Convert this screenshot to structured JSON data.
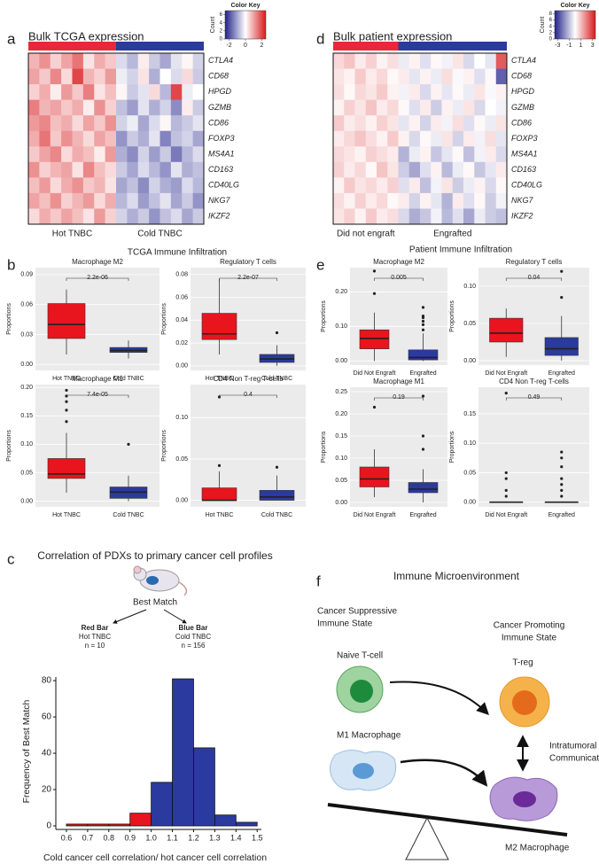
{
  "panel_labels": [
    "a",
    "b",
    "c",
    "d",
    "e",
    "f"
  ],
  "section_titles": [
    "TCGA Immune Infiltration",
    "Patient Immune Infiltration"
  ],
  "chart_data": [
    {
      "type": "heatmap",
      "title": "Bulk TCGA expression",
      "rows": [
        "CTLA4",
        "CD68",
        "HPGD",
        "GZMB",
        "CD86",
        "FOXP3",
        "MS4A1",
        "CD163",
        "CD40LG",
        "NKG7",
        "IKZF2"
      ],
      "groups": [
        {
          "label": "Hot TNBC",
          "color": "#e8283a",
          "columns": 8
        },
        {
          "label": "Cold TNBC",
          "color": "#2b3a9e",
          "columns": 8
        }
      ],
      "values": [
        [
          0.8,
          1.2,
          0.5,
          1.0,
          1.5,
          0.3,
          0.9,
          0.6,
          -0.4,
          -0.8,
          0.2,
          -0.6,
          -1.0,
          -0.3,
          0.1,
          -0.5
        ],
        [
          1.0,
          0.6,
          1.3,
          0.4,
          2.0,
          0.8,
          0.5,
          1.1,
          -0.2,
          -0.5,
          0.3,
          -0.9,
          0.0,
          -0.4,
          0.4,
          -0.6
        ],
        [
          0.5,
          0.9,
          0.2,
          1.1,
          0.6,
          1.4,
          0.3,
          0.7,
          0.1,
          -0.6,
          -0.3,
          0.4,
          -0.8,
          2.0,
          -0.2,
          0.0
        ],
        [
          1.4,
          0.8,
          1.0,
          0.6,
          0.9,
          0.2,
          1.2,
          0.5,
          -0.7,
          -1.1,
          -0.3,
          -0.9,
          -0.5,
          -1.3,
          0.2,
          -0.6
        ],
        [
          1.1,
          1.3,
          0.7,
          0.9,
          0.4,
          1.0,
          0.6,
          1.2,
          -0.5,
          -0.2,
          -1.0,
          -0.4,
          0.1,
          -0.8,
          -0.6,
          -0.3
        ],
        [
          0.9,
          1.5,
          0.6,
          1.2,
          0.8,
          0.4,
          1.0,
          0.7,
          -1.2,
          -0.6,
          -0.9,
          -0.3,
          -1.4,
          -0.7,
          -0.5,
          -1.0
        ],
        [
          0.6,
          1.0,
          1.3,
          0.4,
          0.9,
          0.7,
          0.2,
          1.1,
          -0.9,
          -1.3,
          -0.5,
          -1.1,
          -0.6,
          -1.5,
          -0.8,
          -0.4
        ],
        [
          1.2,
          0.5,
          0.8,
          1.0,
          0.3,
          1.3,
          0.7,
          0.4,
          -0.6,
          -1.0,
          -0.4,
          -0.8,
          -1.2,
          -0.3,
          -0.9,
          -0.7
        ],
        [
          0.7,
          1.1,
          0.4,
          0.9,
          1.2,
          0.6,
          0.8,
          0.3,
          -1.0,
          -0.7,
          -1.3,
          -0.5,
          -0.9,
          -1.1,
          -0.4,
          -0.8
        ],
        [
          1.0,
          0.7,
          1.2,
          0.5,
          0.8,
          1.1,
          0.4,
          0.9,
          -0.8,
          -0.4,
          -1.1,
          -0.7,
          -0.3,
          -1.0,
          -0.6,
          -1.2
        ],
        [
          0.4,
          0.9,
          0.6,
          1.0,
          0.7,
          0.3,
          1.1,
          0.5,
          -0.5,
          -0.9,
          -0.6,
          -1.2,
          -0.7,
          -0.4,
          -1.0,
          -0.6
        ]
      ],
      "color_key": {
        "title": "Color Key",
        "ylabel": "Count",
        "xlim": [
          -2.5,
          2.5
        ],
        "xticks": [
          -2,
          0,
          2
        ],
        "ylim": [
          0,
          7
        ],
        "yticks": [
          0,
          2,
          4,
          6
        ]
      }
    },
    {
      "type": "heatmap",
      "title": "Bulk patient expression",
      "rows": [
        "CTLA4",
        "CD68",
        "HPGD",
        "GZMB",
        "CD86",
        "FOXP3",
        "MS4A1",
        "CD163",
        "CD40LG",
        "NKG7",
        "IKZF2"
      ],
      "groups": [
        {
          "label": "Did not engraft",
          "color": "#e8283a",
          "columns": 6
        },
        {
          "label": "Engrafted",
          "color": "#2b3a9e",
          "columns": 10
        }
      ],
      "values": [
        [
          0.6,
          0.9,
          0.3,
          0.7,
          0.2,
          0.5,
          -0.3,
          0.2,
          -0.5,
          0.1,
          -0.2,
          0.4,
          -0.6,
          0.0,
          -0.4,
          2.5
        ],
        [
          0.4,
          0.2,
          0.8,
          0.3,
          0.6,
          0.1,
          0.3,
          -0.4,
          0.2,
          -0.3,
          0.5,
          -0.1,
          0.2,
          -0.5,
          0.1,
          -2.5
        ],
        [
          0.5,
          0.1,
          0.6,
          0.4,
          0.8,
          0.2,
          -0.2,
          0.3,
          -0.6,
          0.2,
          -0.4,
          0.1,
          -0.3,
          0.4,
          -0.1,
          0.2
        ],
        [
          0.2,
          0.7,
          0.4,
          0.9,
          0.3,
          0.6,
          0.1,
          -0.5,
          0.3,
          -0.8,
          0.2,
          -0.3,
          0.4,
          -0.6,
          0.0,
          -0.2
        ],
        [
          0.8,
          0.3,
          0.5,
          0.2,
          0.7,
          0.4,
          -0.4,
          0.2,
          -0.7,
          0.3,
          -0.2,
          0.5,
          -0.5,
          0.1,
          -0.3,
          0.4
        ],
        [
          0.3,
          0.6,
          0.9,
          0.5,
          0.2,
          0.8,
          0.2,
          -0.6,
          0.1,
          -0.3,
          0.4,
          -0.7,
          0.3,
          -0.2,
          0.5,
          -0.4
        ],
        [
          0.6,
          0.4,
          0.2,
          0.7,
          0.5,
          0.3,
          -1.2,
          -0.3,
          0.2,
          -0.9,
          -0.4,
          0.1,
          -1.0,
          -0.2,
          0.3,
          -0.6
        ],
        [
          0.7,
          0.3,
          0.6,
          0.1,
          0.9,
          0.4,
          -0.8,
          -1.4,
          -0.5,
          0.2,
          -1.1,
          -0.3,
          0.1,
          -0.9,
          -0.4,
          0.3
        ],
        [
          0.2,
          0.8,
          0.4,
          0.6,
          0.3,
          0.7,
          -0.5,
          0.3,
          -1.0,
          -0.2,
          0.4,
          -0.8,
          -0.3,
          0.2,
          -0.6,
          0.1
        ],
        [
          0.5,
          0.2,
          0.7,
          0.3,
          0.6,
          0.1,
          0.3,
          -0.7,
          0.2,
          -0.4,
          -1.2,
          0.3,
          -0.5,
          0.1,
          -0.8,
          -0.2
        ],
        [
          0.4,
          0.7,
          0.2,
          0.8,
          0.3,
          0.5,
          -0.6,
          -1.3,
          -0.9,
          -0.2,
          -1.1,
          -0.5,
          -1.4,
          -0.3,
          -0.8,
          -1.0
        ]
      ],
      "color_key": {
        "title": "Color Key",
        "ylabel": "Count",
        "xlim": [
          -3.5,
          3.5
        ],
        "xticks": [
          -3,
          -1,
          1,
          3
        ],
        "ylim": [
          0,
          9
        ],
        "yticks": [
          0,
          2,
          4,
          6,
          8
        ]
      }
    },
    {
      "type": "box",
      "title": "Macrophage M2",
      "ylabel": "Proportions",
      "categories": [
        "Hot TNBC",
        "Cold TNBC"
      ],
      "colors": [
        "#e8141e",
        "#2b3a9e"
      ],
      "ylim": [
        -0.006,
        0.097
      ],
      "yticks": [
        {
          "value": 0,
          "label": "0.00"
        },
        0.03,
        0.06,
        0.09
      ],
      "annotation": "2.2e-06",
      "boxes": [
        {
          "min": 0.01,
          "q1": 0.026,
          "median": 0.04,
          "q3": 0.061,
          "max": 0.075,
          "outliers": []
        },
        {
          "min": 0.006,
          "q1": 0.012,
          "median": 0.014,
          "q3": 0.017,
          "max": 0.024,
          "outliers": []
        }
      ]
    },
    {
      "type": "box",
      "title": "Regulatory T cells",
      "ylabel": "Proportions",
      "categories": [
        "Hot TNBC",
        "Cold TNBC"
      ],
      "colors": [
        "#e8141e",
        "#2b3a9e"
      ],
      "ylim": [
        -0.004,
        0.086
      ],
      "yticks": [
        {
          "value": 0,
          "label": "0.00"
        },
        0.02,
        0.04,
        0.06,
        0.08
      ],
      "annotation": "2.2e-07",
      "boxes": [
        {
          "min": 0.01,
          "q1": 0.023,
          "median": 0.028,
          "q3": 0.046,
          "max": 0.076,
          "outliers": []
        },
        {
          "min": 0,
          "q1": 0.003,
          "median": 0.006,
          "q3": 0.01,
          "max": 0.018,
          "outliers": [
            0.029
          ]
        }
      ]
    },
    {
      "type": "box",
      "title": "Macrophage M1",
      "ylabel": "Proportions",
      "categories": [
        "Hot TNBC",
        "Cold TNBC"
      ],
      "colors": [
        "#e8141e",
        "#2b3a9e"
      ],
      "ylim": [
        -0.01,
        0.205
      ],
      "yticks": [
        {
          "value": 0,
          "label": "0.00"
        },
        0.05,
        {
          "value": 0.1,
          "label": "0.10"
        },
        0.15,
        {
          "value": 0.2,
          "label": "0.20"
        }
      ],
      "annotation": "7.4e-05",
      "boxes": [
        {
          "min": 0.015,
          "q1": 0.04,
          "median": 0.048,
          "q3": 0.075,
          "max": 0.12,
          "outliers": [
            0.14,
            0.16,
            0.175,
            0.185,
            0.195
          ]
        },
        {
          "min": 0,
          "q1": 0.005,
          "median": 0.016,
          "q3": 0.025,
          "max": 0.045,
          "outliers": [
            0.1
          ]
        }
      ]
    },
    {
      "type": "box",
      "title": "CD4 Non T-reg T-cells",
      "ylabel": "Proportions",
      "categories": [
        "Hot TNBC",
        "Cold TNBC"
      ],
      "colors": [
        "#e8141e",
        "#2b3a9e"
      ],
      "ylim": [
        -0.008,
        0.14
      ],
      "yticks": [
        {
          "value": 0,
          "label": "0.00"
        },
        0.05,
        {
          "value": 0.1,
          "label": "0.10"
        }
      ],
      "annotation": "0.4",
      "boxes": [
        {
          "min": 0,
          "q1": 0,
          "median": 0,
          "q3": 0.015,
          "max": 0.035,
          "outliers": [
            0.042,
            0.125
          ]
        },
        {
          "min": 0,
          "q1": 0,
          "median": 0.004,
          "q3": 0.012,
          "max": 0.03,
          "outliers": [
            0.04
          ]
        }
      ]
    },
    {
      "type": "box",
      "title": "Macrophage M2",
      "ylabel": "Proportions",
      "categories": [
        "Did Not Engraft",
        "Engrafted"
      ],
      "colors": [
        "#e8141e",
        "#2b3a9e"
      ],
      "ylim": [
        -0.012,
        0.27
      ],
      "yticks": [
        {
          "value": 0,
          "label": "0.00"
        },
        {
          "value": 0.1,
          "label": "0.10"
        },
        {
          "value": 0.2,
          "label": "0.20"
        }
      ],
      "annotation": "0.005",
      "boxes": [
        {
          "min": 0,
          "q1": 0.035,
          "median": 0.065,
          "q3": 0.09,
          "max": 0.14,
          "outliers": [
            0.195,
            0.26
          ]
        },
        {
          "min": 0,
          "q1": 0.003,
          "median": 0.01,
          "q3": 0.032,
          "max": 0.08,
          "outliers": [
            0.09,
            0.105,
            0.115,
            0.125,
            0.13,
            0.155
          ]
        }
      ]
    },
    {
      "type": "box",
      "title": "Regulatory T cells",
      "ylabel": "Proportions",
      "categories": [
        "Did Not Engraft",
        "Engrafted"
      ],
      "colors": [
        "#e8141e",
        "#2b3a9e"
      ],
      "ylim": [
        -0.006,
        0.125
      ],
      "yticks": [
        {
          "value": 0,
          "label": "0.00"
        },
        0.05,
        {
          "value": 0.1,
          "label": "0.10"
        }
      ],
      "annotation": "0.04",
      "boxes": [
        {
          "min": 0.005,
          "q1": 0.025,
          "median": 0.037,
          "q3": 0.057,
          "max": 0.07,
          "outliers": []
        },
        {
          "min": 0,
          "q1": 0.007,
          "median": 0.016,
          "q3": 0.031,
          "max": 0.06,
          "outliers": [
            0.085,
            0.12
          ]
        }
      ]
    },
    {
      "type": "box",
      "title": "Macrophage M1",
      "ylabel": "Proportions",
      "categories": [
        "Did Not Engraft",
        "Engrafted"
      ],
      "colors": [
        "#e8141e",
        "#2b3a9e"
      ],
      "ylim": [
        -0.01,
        0.26
      ],
      "yticks": [
        {
          "value": 0,
          "label": "0.00"
        },
        0.05,
        {
          "value": 0.1,
          "label": "0.10"
        },
        0.15,
        {
          "value": 0.2,
          "label": "0.20"
        },
        0.25
      ],
      "annotation": "0.19",
      "boxes": [
        {
          "min": 0.012,
          "q1": 0.035,
          "median": 0.053,
          "q3": 0.08,
          "max": 0.12,
          "outliers": [
            0.215
          ]
        },
        {
          "min": 0,
          "q1": 0.022,
          "median": 0.03,
          "q3": 0.045,
          "max": 0.075,
          "outliers": [
            0.12,
            0.15,
            0.24
          ]
        }
      ]
    },
    {
      "type": "box",
      "title": "CD4 Non T-reg T-cells",
      "ylabel": "Proportions",
      "categories": [
        "Did Not Engraft",
        "Engrafted"
      ],
      "colors": [
        "#e8141e",
        "#2b3a9e"
      ],
      "ylim": [
        -0.008,
        0.195
      ],
      "yticks": [
        {
          "value": 0,
          "label": "0.00"
        },
        0.05,
        {
          "value": 0.1,
          "label": "0.10"
        },
        0.15
      ],
      "annotation": "0.49",
      "boxes": [
        {
          "min": 0,
          "q1": 0,
          "median": 0,
          "q3": 0,
          "max": 0,
          "outliers": [
            0.01,
            0.02,
            0.04,
            0.05,
            0.185
          ]
        },
        {
          "min": 0,
          "q1": 0,
          "median": 0,
          "q3": 0,
          "max": 0,
          "outliers": [
            0.01,
            0.02,
            0.03,
            0.04,
            0.06,
            0.075,
            0.085
          ]
        }
      ]
    },
    {
      "type": "histogram",
      "title": "Correlation of PDXs to primary cancer cell profiles",
      "xlabel": "Cold cancer cell correlation/ hot cancer cell correlation",
      "ylabel": "Frequency of Best Match",
      "bins": [
        0.6,
        0.7,
        0.8,
        0.9,
        1.0,
        1.1,
        1.2,
        1.3,
        1.4,
        1.5
      ],
      "counts": [
        1,
        1,
        1,
        7,
        24,
        81,
        43,
        6,
        2
      ],
      "colors": [
        "#e8141e",
        "#e8141e",
        "#e8141e",
        "#e8141e",
        "#2b3a9e",
        "#2b3a9e",
        "#2b3a9e",
        "#2b3a9e",
        "#2b3a9e"
      ],
      "xlim": [
        0.55,
        1.52
      ],
      "xticks": [
        0.6,
        0.7,
        0.8,
        0.9,
        {
          "value": 1,
          "label": "1.0"
        },
        1.1,
        1.2,
        1.3,
        1.4,
        1.5
      ],
      "ylim": [
        0,
        82
      ],
      "yticks": [
        0,
        20,
        40,
        60,
        80
      ],
      "annotations": {
        "best_match": "Best Match",
        "red": [
          "Red Bar",
          "Hot TNBC",
          "n = 10"
        ],
        "blue": [
          "Blue Bar",
          "Cold TNBC",
          "n = 156"
        ]
      }
    }
  ],
  "diagram": {
    "title": "Immune Microenvironment",
    "suppressive": [
      "Cancer Suppressive",
      "Immune State"
    ],
    "promoting": [
      "Cancer Promoting",
      "Immune State"
    ],
    "naive": "Naive T-cell",
    "treg": "T-reg",
    "m1": "M1 Macrophage",
    "communication": [
      "Intratumoral",
      "Communication"
    ],
    "m2": "M2 Macrophage"
  }
}
